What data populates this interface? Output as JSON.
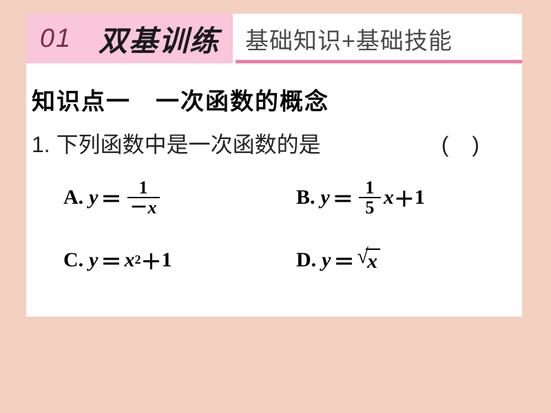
{
  "colors": {
    "page_bg": "#f3d0c0",
    "card_bg": "#ffffff",
    "badge_bg": "#f9c6da",
    "badge_fg": "#7a2b45",
    "title_underline": "#f07ba8",
    "subtitle_fg": "#4a4a4a",
    "text_fg": "#000000"
  },
  "header": {
    "badge": "01",
    "title_main": "双基训练",
    "title_sub": "基础知识+基础技能"
  },
  "knowledge_point": "知识点一　一次函数的概念",
  "question": {
    "number": "1.",
    "stem": "下列函数中是一次函数的是",
    "paren_open": "(",
    "paren_close": ")"
  },
  "options": {
    "A": {
      "label": "A.",
      "lhs": "y",
      "eq": "＝",
      "frac_num": "1",
      "frac_den_neg": "－",
      "frac_den_var": "x"
    },
    "B": {
      "label": "B.",
      "lhs": "y",
      "eq": "＝",
      "frac_num": "1",
      "frac_den": "5",
      "var": "x",
      "plus": "＋",
      "const": "1"
    },
    "C": {
      "label": "C.",
      "lhs": "y",
      "eq": "＝",
      "var": "x",
      "exp": "2",
      "plus": "＋",
      "const": "1"
    },
    "D": {
      "label": "D.",
      "lhs": "y",
      "eq": "＝",
      "sqrt_arg": "x"
    }
  }
}
